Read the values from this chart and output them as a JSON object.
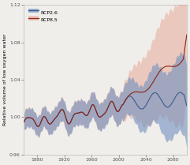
{
  "title": "",
  "ylabel": "Relative volume of low oxygen water",
  "xlabel": "",
  "xlim": [
    1860,
    2100
  ],
  "ylim": [
    0.96,
    1.12
  ],
  "yticks": [
    0.96,
    1.0,
    1.04,
    1.08,
    1.12
  ],
  "xticks": [
    1880,
    1920,
    1960,
    2000,
    2040,
    2080
  ],
  "rcp26_color": "#3a5a8c",
  "rcp85_color": "#8b2510",
  "rcp26_fill": "#7090c0",
  "rcp85_fill": "#e8b0a0",
  "background": "#f0eeeb",
  "legend_labels": [
    "RCP2.6",
    "RCP8.5"
  ]
}
